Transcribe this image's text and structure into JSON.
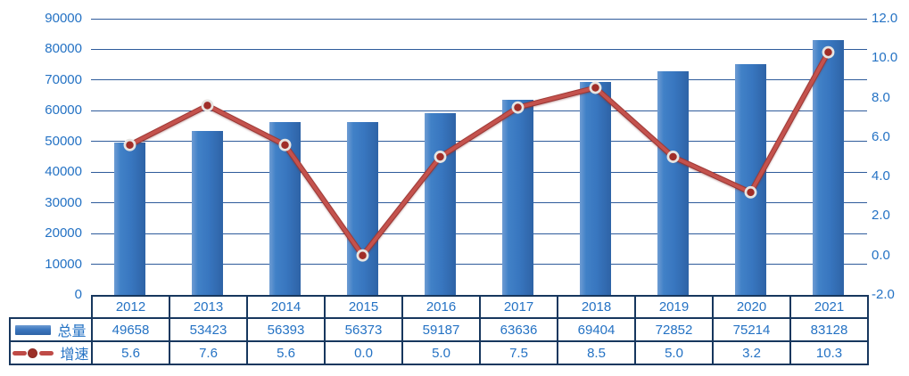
{
  "chart_data": {
    "type": "combo-bar-line",
    "title": "",
    "categories": [
      "2012",
      "2013",
      "2014",
      "2015",
      "2016",
      "2017",
      "2018",
      "2019",
      "2020",
      "2021"
    ],
    "series": [
      {
        "name": "总量",
        "type": "bar",
        "axis": "left",
        "values": [
          49658,
          53423,
          56393,
          56373,
          59187,
          63636,
          69404,
          72852,
          75214,
          83128
        ],
        "labels": [
          "49658",
          "53423",
          "56393",
          "56373",
          "59187",
          "63636",
          "69404",
          "72852",
          "75214",
          "83128"
        ],
        "color": "#3b76be"
      },
      {
        "name": "增速",
        "type": "line",
        "axis": "right",
        "values": [
          5.6,
          7.6,
          5.6,
          0.0,
          5.0,
          7.5,
          8.5,
          5.0,
          3.2,
          10.3
        ],
        "labels": [
          "5.6",
          "7.6",
          "5.6",
          "0.0",
          "5.0",
          "7.5",
          "8.5",
          "5.0",
          "3.2",
          "10.3"
        ],
        "color": "#bf4b47"
      }
    ],
    "left_axis": {
      "min": 0,
      "max": 90000,
      "step": 10000,
      "tick_labels": [
        "90000",
        "80000",
        "70000",
        "60000",
        "50000",
        "40000",
        "30000",
        "20000",
        "10000",
        "0"
      ]
    },
    "right_axis": {
      "min": -2,
      "max": 12,
      "step": 2,
      "tick_labels": [
        "12.0",
        "10.0",
        "8.0",
        "6.0",
        "4.0",
        "2.0",
        "0.0",
        "-2.0"
      ]
    },
    "grid": true,
    "legend_position": "left-of-data-table",
    "colors": {
      "bar": "#3b76be",
      "line": "#bf4b47",
      "marker_fill": "#a02e28",
      "marker_ring": "#e7e5e2",
      "axis_text": "#2472c4",
      "gridline": "#2e5b9b",
      "table_border": "#17375e",
      "background": "#ffffff"
    }
  }
}
